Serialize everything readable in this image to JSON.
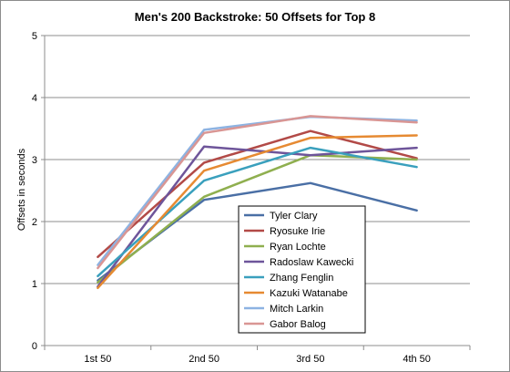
{
  "chart_data": {
    "type": "line",
    "title": "Men's 200 Backstroke: 50 Offsets for Top 8",
    "xlabel": "",
    "ylabel": "Offsets in seconds",
    "categories": [
      "1st 50",
      "2nd 50",
      "3rd 50",
      "4th 50"
    ],
    "ylim": [
      0,
      5
    ],
    "yticks": [
      0,
      1,
      2,
      3,
      4,
      5
    ],
    "grid": true,
    "legend_position": "inside-bottom-right",
    "series": [
      {
        "name": "Tyler Clary",
        "color": "#4a6fa5",
        "values": [
          1.05,
          2.35,
          2.62,
          2.18
        ]
      },
      {
        "name": "Ryosuke Irie",
        "color": "#b24a47",
        "values": [
          1.43,
          2.95,
          3.46,
          3.02
        ]
      },
      {
        "name": "Ryan Lochte",
        "color": "#8faf4f",
        "values": [
          1.02,
          2.4,
          3.07,
          3.0
        ]
      },
      {
        "name": "Radoslaw Kawecki",
        "color": "#6e559a",
        "values": [
          0.95,
          3.21,
          3.07,
          3.19
        ]
      },
      {
        "name": "Zhang Fenglin",
        "color": "#3aa0bd",
        "values": [
          1.12,
          2.66,
          3.19,
          2.88
        ]
      },
      {
        "name": "Kazuki Watanabe",
        "color": "#e68a32",
        "values": [
          0.93,
          2.82,
          3.35,
          3.39
        ]
      },
      {
        "name": "Mitch Larkin",
        "color": "#8db3e2",
        "values": [
          1.3,
          3.48,
          3.69,
          3.63
        ]
      },
      {
        "name": "Gabor Balog",
        "color": "#d99694",
        "values": [
          1.25,
          3.43,
          3.7,
          3.6
        ]
      }
    ]
  }
}
